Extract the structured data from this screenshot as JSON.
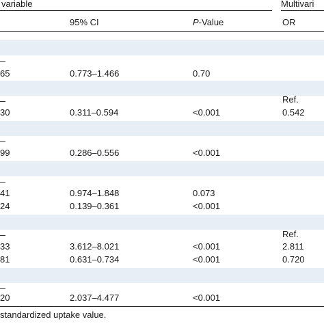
{
  "header": {
    "univariable": "variable",
    "multivariable": "Multivari",
    "col_ci": "95% CI",
    "col_p_italic": "P",
    "col_p_rest": "-Value",
    "col_or": "OR"
  },
  "rows": [
    {
      "or_uni": "65",
      "ci": "0.773–1.466",
      "p": "0.70",
      "or_multi": ""
    },
    {
      "or_uni": "30",
      "ci": "0.311–0.594",
      "p": "<0.001",
      "ref": "Ref.",
      "or_multi": "0.542"
    },
    {
      "or_uni": "99",
      "ci": "0.286–0.556",
      "p": "<0.001",
      "or_multi": ""
    },
    {
      "or_uni": "41",
      "ci": "0.974–1.848",
      "p": "0.073",
      "or_multi": ""
    },
    {
      "or_uni": "24",
      "ci": "0.139–0.361",
      "p": "<0.001",
      "or_multi": ""
    },
    {
      "or_uni": "33",
      "ci": "3.612–8.021",
      "p": "<0.001",
      "ref": "Ref.",
      "or_multi": "2.811"
    },
    {
      "or_uni": "81",
      "ci": "0.631–0.734",
      "p": "<0.001",
      "or_multi": "0.720"
    },
    {
      "or_uni": "20",
      "ci": "2.037–4.477",
      "p": "<0.001",
      "or_multi": ""
    }
  ],
  "footnote": "standardized uptake value."
}
